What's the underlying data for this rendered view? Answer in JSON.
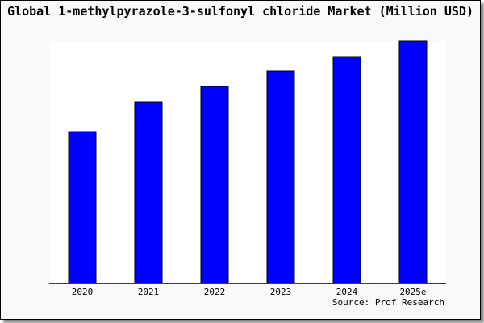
{
  "chart_data": {
    "type": "bar",
    "title": "Global 1-methylpyrazole-3-sulfonyl chloride Market (Million USD)",
    "categories": [
      "2020",
      "2021",
      "2022",
      "2023",
      "2024",
      "2025e"
    ],
    "values": [
      188,
      225,
      244,
      263,
      281,
      300
    ],
    "ylim": [
      0,
      300
    ],
    "xlabel": "",
    "ylabel": "",
    "grid": false,
    "bar_color": "#0000ff",
    "source": "Source: Prof Research"
  }
}
